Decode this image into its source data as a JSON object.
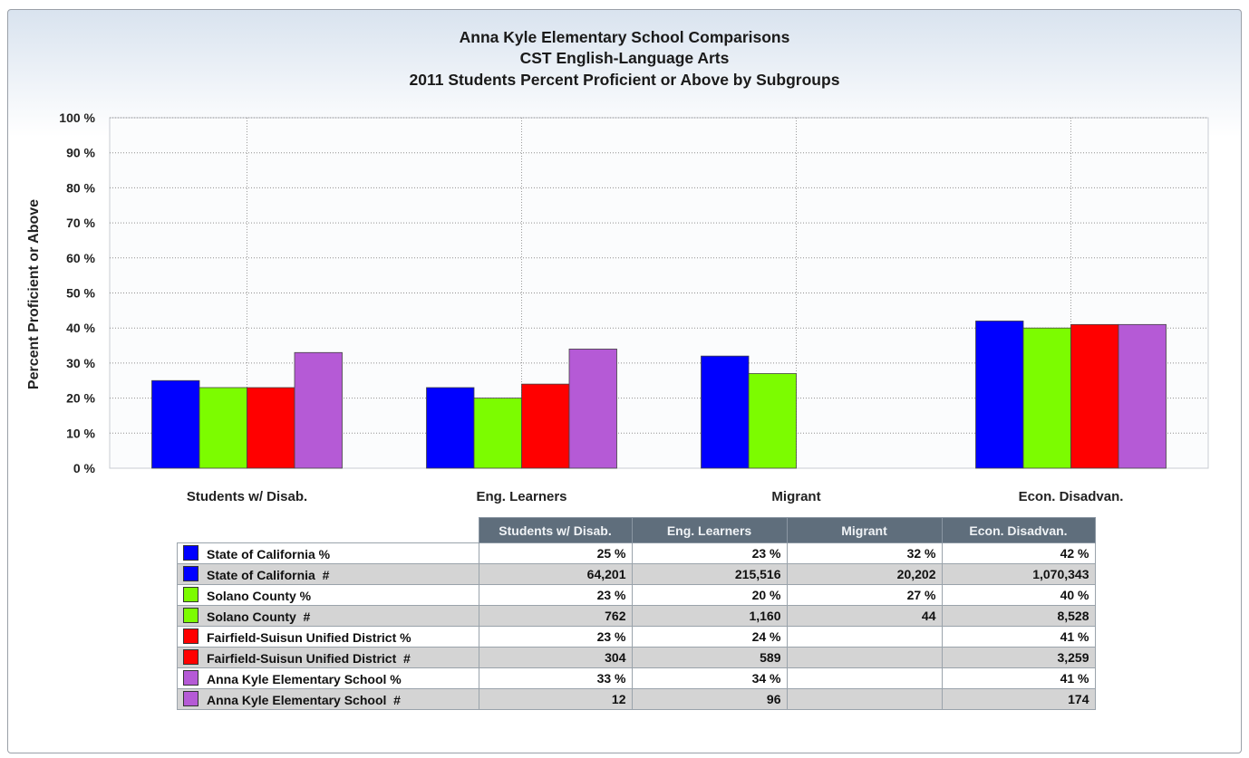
{
  "title_lines": [
    "Anna Kyle Elementary School Comparisons",
    "CST English-Language Arts",
    "2011 Students Percent Proficient or Above by Subgroups"
  ],
  "chart_data": {
    "type": "bar",
    "title": "Anna Kyle Elementary School Comparisons / CST English-Language Arts / 2011 Students Percent Proficient or Above by Subgroups",
    "ylabel": "Percent Proficient or Above",
    "xlabel": "",
    "ylim": [
      0,
      100
    ],
    "yticks": [
      "0 %",
      "10 %",
      "20 %",
      "30 %",
      "40 %",
      "50 %",
      "60 %",
      "70 %",
      "80 %",
      "90 %",
      "100 %"
    ],
    "grid": true,
    "categories": [
      "Students w/ Disab.",
      "Eng. Learners",
      "Migrant",
      "Econ. Disadvan."
    ],
    "series": [
      {
        "name": "State of California %",
        "color": "#0000ff",
        "values": [
          25,
          23,
          32,
          42
        ]
      },
      {
        "name": "Solano County %",
        "color": "#7cfc00",
        "values": [
          23,
          20,
          27,
          40
        ]
      },
      {
        "name": "Fairfield-Suisun Unified District %",
        "color": "#ff0000",
        "values": [
          23,
          24,
          null,
          41
        ]
      },
      {
        "name": "Anna Kyle Elementary School %",
        "color": "#b55ad6",
        "values": [
          33,
          34,
          null,
          41
        ]
      }
    ]
  },
  "table": {
    "columns": [
      "Students w/ Disab.",
      "Eng. Learners",
      "Migrant",
      "Econ. Disadvan."
    ],
    "rows": [
      {
        "label": "State of California %",
        "color": "#0000ff",
        "cells": [
          "25 %",
          "23 %",
          "32 %",
          "42 %"
        ]
      },
      {
        "label": "State of California  #",
        "color": "#0000ff",
        "cells": [
          "64,201",
          "215,516",
          "20,202",
          "1,070,343"
        ]
      },
      {
        "label": "Solano County %",
        "color": "#7cfc00",
        "cells": [
          "23 %",
          "20 %",
          "27 %",
          "40 %"
        ]
      },
      {
        "label": "Solano County  #",
        "color": "#7cfc00",
        "cells": [
          "762",
          "1,160",
          "44",
          "8,528"
        ]
      },
      {
        "label": "Fairfield-Suisun Unified District %",
        "color": "#ff0000",
        "cells": [
          "23 %",
          "24 %",
          "",
          "41 %"
        ]
      },
      {
        "label": "Fairfield-Suisun Unified District  #",
        "color": "#ff0000",
        "cells": [
          "304",
          "589",
          "",
          "3,259"
        ]
      },
      {
        "label": "Anna Kyle Elementary School %",
        "color": "#b55ad6",
        "cells": [
          "33 %",
          "34 %",
          "",
          "41 %"
        ]
      },
      {
        "label": "Anna Kyle Elementary School  #",
        "color": "#b55ad6",
        "cells": [
          "12",
          "96",
          "",
          "174"
        ]
      }
    ]
  }
}
